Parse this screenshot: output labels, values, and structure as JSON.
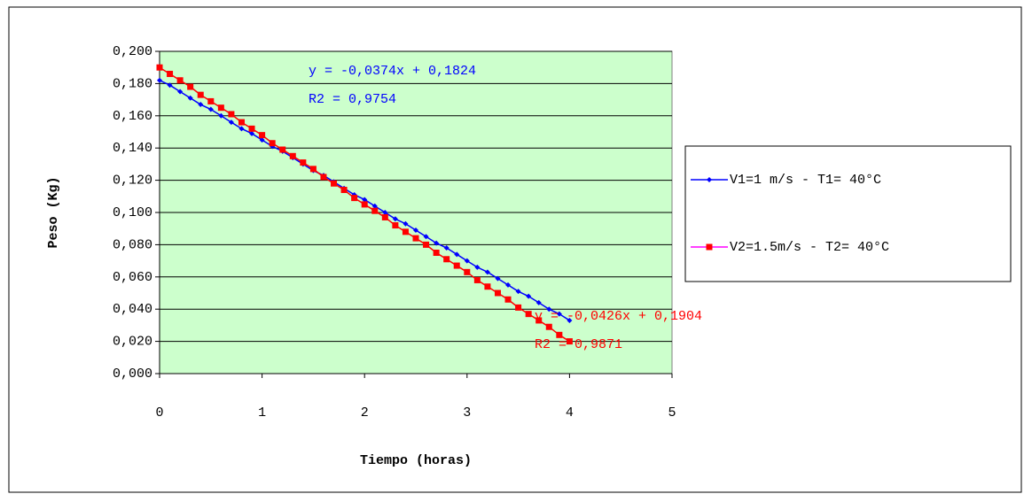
{
  "chart_data": {
    "type": "scatter",
    "x_label": "Tiempo (horas)",
    "y_label": "Peso (Kg)",
    "x": [
      0,
      0.1,
      0.2,
      0.3,
      0.4,
      0.5,
      0.6,
      0.7,
      0.8,
      0.9,
      1,
      1.1,
      1.2,
      1.3,
      1.4,
      1.5,
      1.6,
      1.7,
      1.8,
      1.9,
      2,
      2.1,
      2.2,
      2.3,
      2.4,
      2.5,
      2.6,
      2.7,
      2.8,
      2.9,
      3,
      3.1,
      3.2,
      3.3,
      3.4,
      3.5,
      3.6,
      3.7,
      3.8,
      3.9,
      4
    ],
    "series": [
      {
        "name": "V1=1 m/s - T1= 40°C",
        "color": "#0000ff",
        "legend_color": "#0000ff",
        "marker": "diamond",
        "values": [
          0.182,
          0.179,
          0.175,
          0.171,
          0.167,
          0.164,
          0.16,
          0.156,
          0.152,
          0.149,
          0.145,
          0.141,
          0.138,
          0.134,
          0.13,
          0.126,
          0.123,
          0.119,
          0.115,
          0.111,
          0.108,
          0.104,
          0.1,
          0.096,
          0.093,
          0.089,
          0.085,
          0.081,
          0.078,
          0.074,
          0.07,
          0.066,
          0.063,
          0.059,
          0.055,
          0.051,
          0.048,
          0.044,
          0.04,
          0.037,
          0.033
        ]
      },
      {
        "name": "V2=1.5m/s - T2= 40°C",
        "color": "#ff0000",
        "legend_color": "#ff00ff",
        "marker": "square",
        "values": [
          0.19,
          0.186,
          0.182,
          0.178,
          0.173,
          0.169,
          0.165,
          0.161,
          0.156,
          0.152,
          0.148,
          0.143,
          0.139,
          0.135,
          0.131,
          0.127,
          0.122,
          0.118,
          0.114,
          0.109,
          0.105,
          0.101,
          0.097,
          0.092,
          0.088,
          0.084,
          0.08,
          0.075,
          0.071,
          0.067,
          0.063,
          0.058,
          0.054,
          0.05,
          0.046,
          0.041,
          0.037,
          0.033,
          0.029,
          0.024,
          0.02
        ]
      }
    ],
    "annotations": [
      {
        "lines": [
          "y = -0,0374x + 0,1824",
          "R2 = 0,9754"
        ],
        "color": "#0000ff"
      },
      {
        "lines": [
          "y = -0,0426x + 0,1904",
          "R2 = 0,9871"
        ],
        "color": "#ff0000"
      }
    ],
    "xlim": [
      0,
      5
    ],
    "ylim": [
      0,
      0.2
    ],
    "xticks": [
      0,
      1,
      2,
      3,
      4,
      5
    ],
    "yticks": [
      {
        "value": 0,
        "label": "0,000"
      },
      {
        "value": 0.02,
        "label": "0,020"
      },
      {
        "value": 0.04,
        "label": "0,040"
      },
      {
        "value": 0.06,
        "label": "0,060"
      },
      {
        "value": 0.08,
        "label": "0,080"
      },
      {
        "value": 0.1,
        "label": "0,100"
      },
      {
        "value": 0.12,
        "label": "0,120"
      },
      {
        "value": 0.14,
        "label": "0,140"
      },
      {
        "value": 0.16,
        "label": "0,160"
      },
      {
        "value": 0.18,
        "label": "0,180"
      },
      {
        "value": 0.2,
        "label": "0,200"
      }
    ],
    "grid": true,
    "plot_background": "#ccffcc",
    "legend_position": "right"
  }
}
